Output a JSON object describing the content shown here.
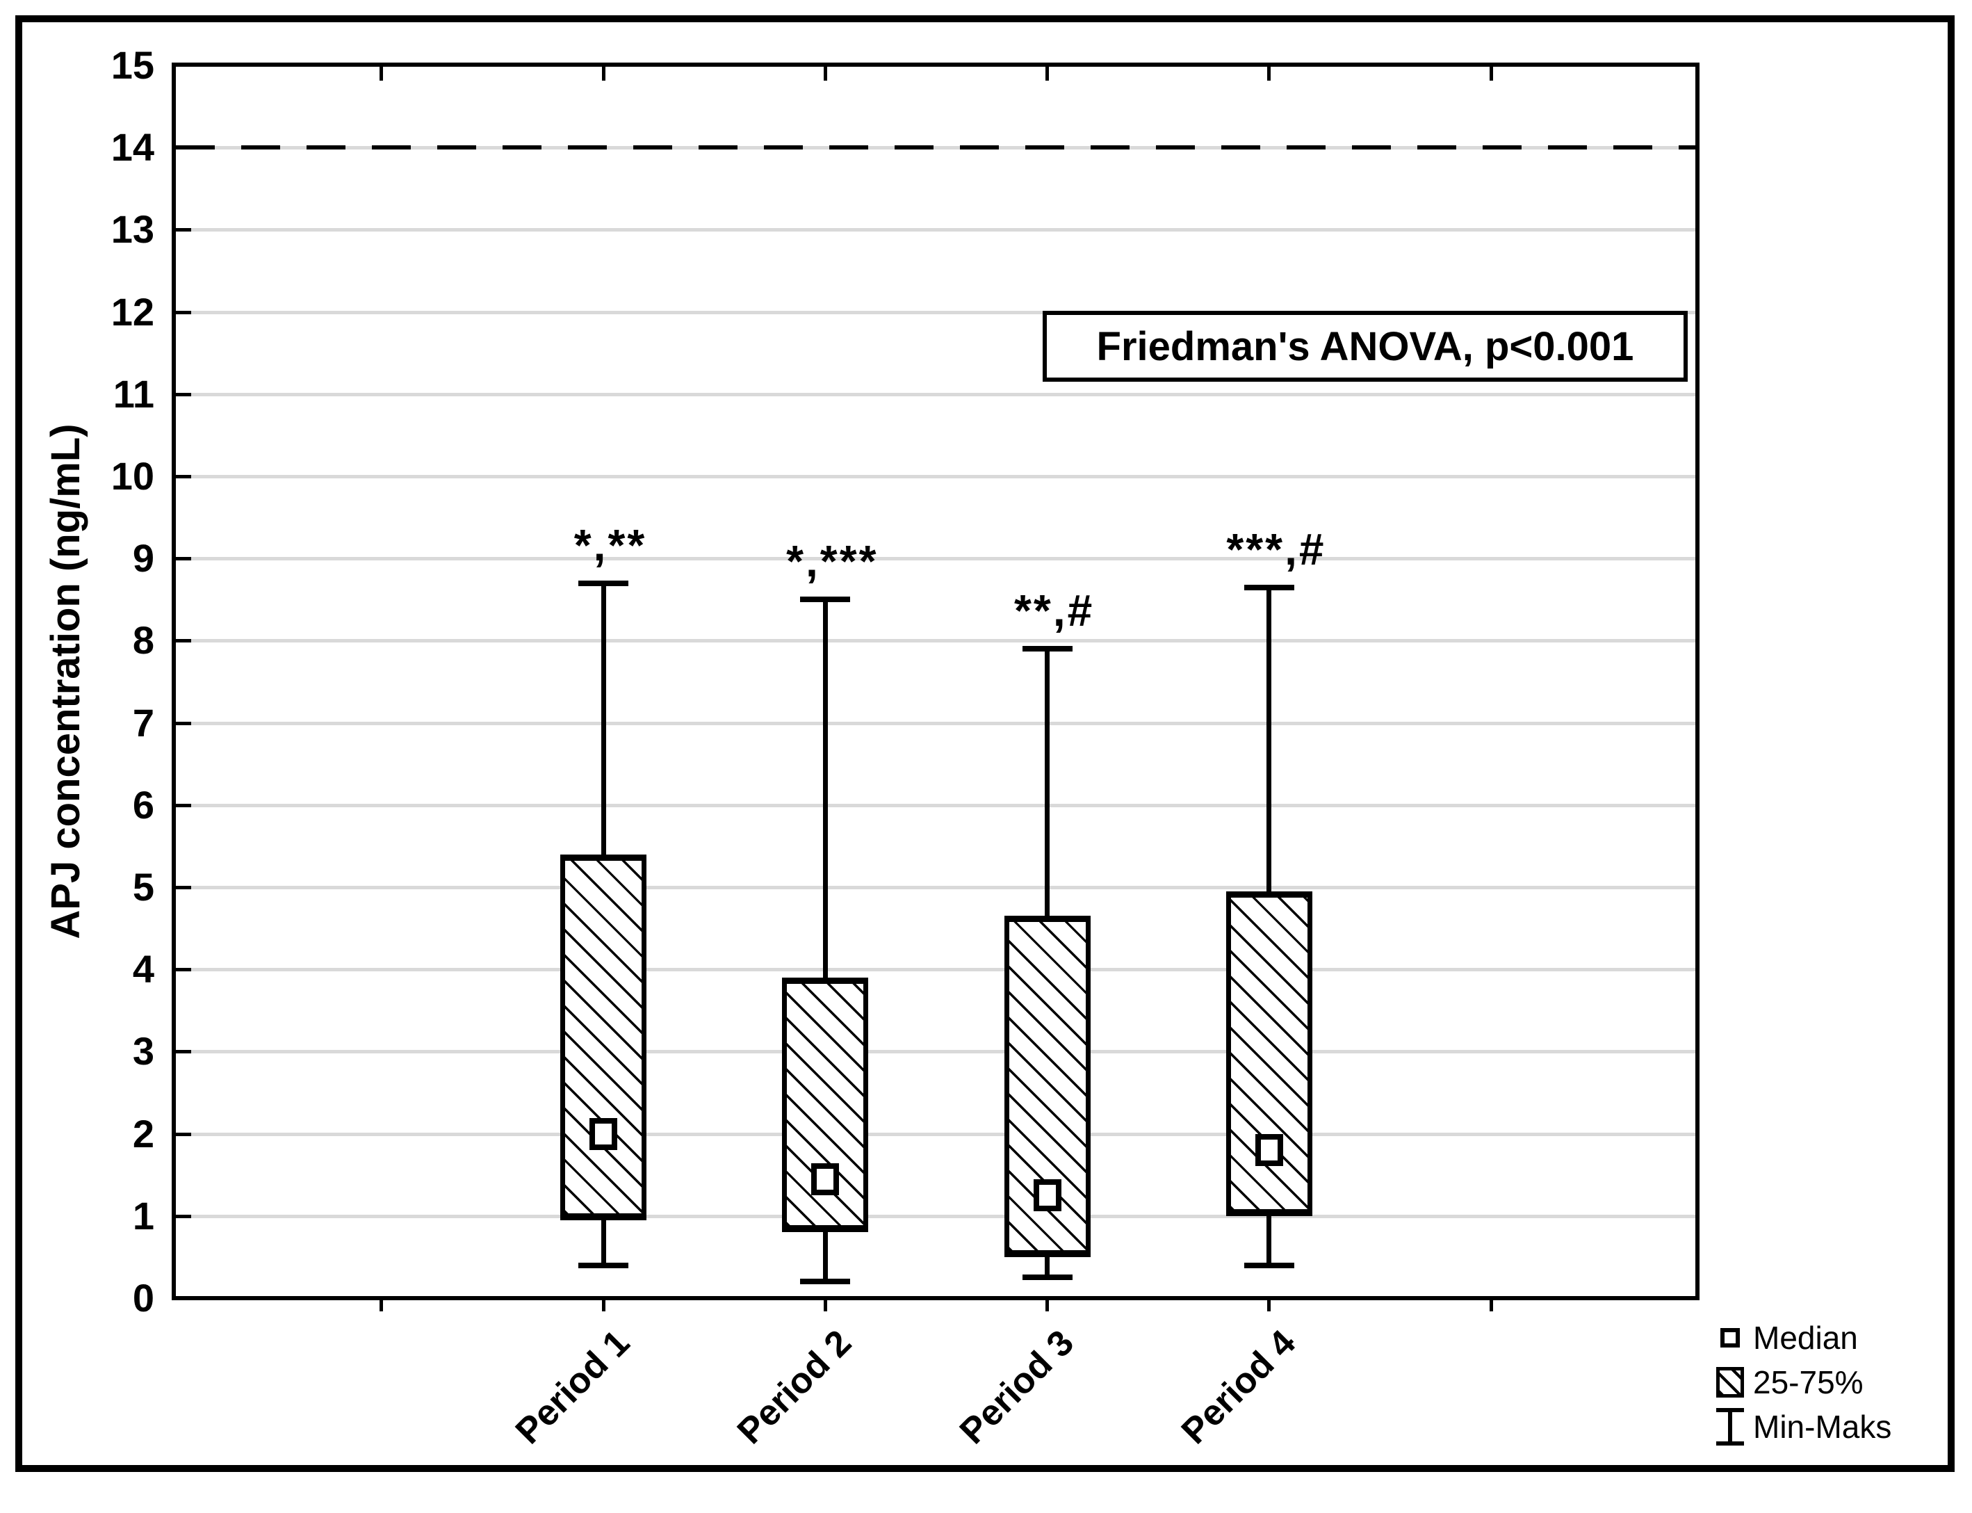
{
  "figure": {
    "background": "#ffffff",
    "border_color": "#000000"
  },
  "stats_box": {
    "text": "Friedman's ANOVA, p<0.001"
  },
  "y_axis": {
    "label": "APJ concentration (ng/mL)",
    "min": 0,
    "max": 15,
    "step": 1,
    "tick_labels": [
      "0",
      "1",
      "2",
      "3",
      "4",
      "5",
      "6",
      "7",
      "8",
      "9",
      "10",
      "11",
      "12",
      "13",
      "14",
      "15"
    ]
  },
  "x_axis": {
    "categories": [
      "Period 1",
      "Period 2",
      "Period 3",
      "Period 4"
    ]
  },
  "legend": {
    "items": [
      {
        "symbol": "median-square-icon",
        "label": "Median"
      },
      {
        "symbol": "hatched-box-icon",
        "label": "25-75%"
      },
      {
        "symbol": "min-max-whisker-icon",
        "label": "Min-Maks"
      }
    ]
  },
  "colors": {
    "ink": "#000000",
    "gridline": "#d9d9d9",
    "background": "#ffffff"
  },
  "chart_data": {
    "type": "boxplot",
    "title": "",
    "xlabel": "",
    "ylabel": "APJ concentration (ng/mL)",
    "ylim": [
      0,
      15
    ],
    "grid": "horizontal",
    "legend_position": "bottom-right",
    "reference_line": {
      "y": 14,
      "style": "dashed",
      "color": "#000000"
    },
    "stats_annotation": "Friedman's ANOVA, p<0.001",
    "categories": [
      "Period 1",
      "Period 2",
      "Period 3",
      "Period 4"
    ],
    "boxes": [
      {
        "category": "Period 1",
        "min": 0.4,
        "q1": 0.95,
        "median": 2.0,
        "q3": 5.4,
        "max": 8.7,
        "annotation": "*,**"
      },
      {
        "category": "Period 2",
        "min": 0.2,
        "q1": 0.8,
        "median": 1.45,
        "q3": 3.9,
        "max": 8.5,
        "annotation": "*,***"
      },
      {
        "category": "Period 3",
        "min": 0.25,
        "q1": 0.5,
        "median": 1.25,
        "q3": 4.65,
        "max": 7.9,
        "annotation": "**,#"
      },
      {
        "category": "Period 4",
        "min": 0.4,
        "q1": 1.0,
        "median": 1.8,
        "q3": 4.95,
        "max": 8.65,
        "annotation": "***,#"
      }
    ]
  }
}
